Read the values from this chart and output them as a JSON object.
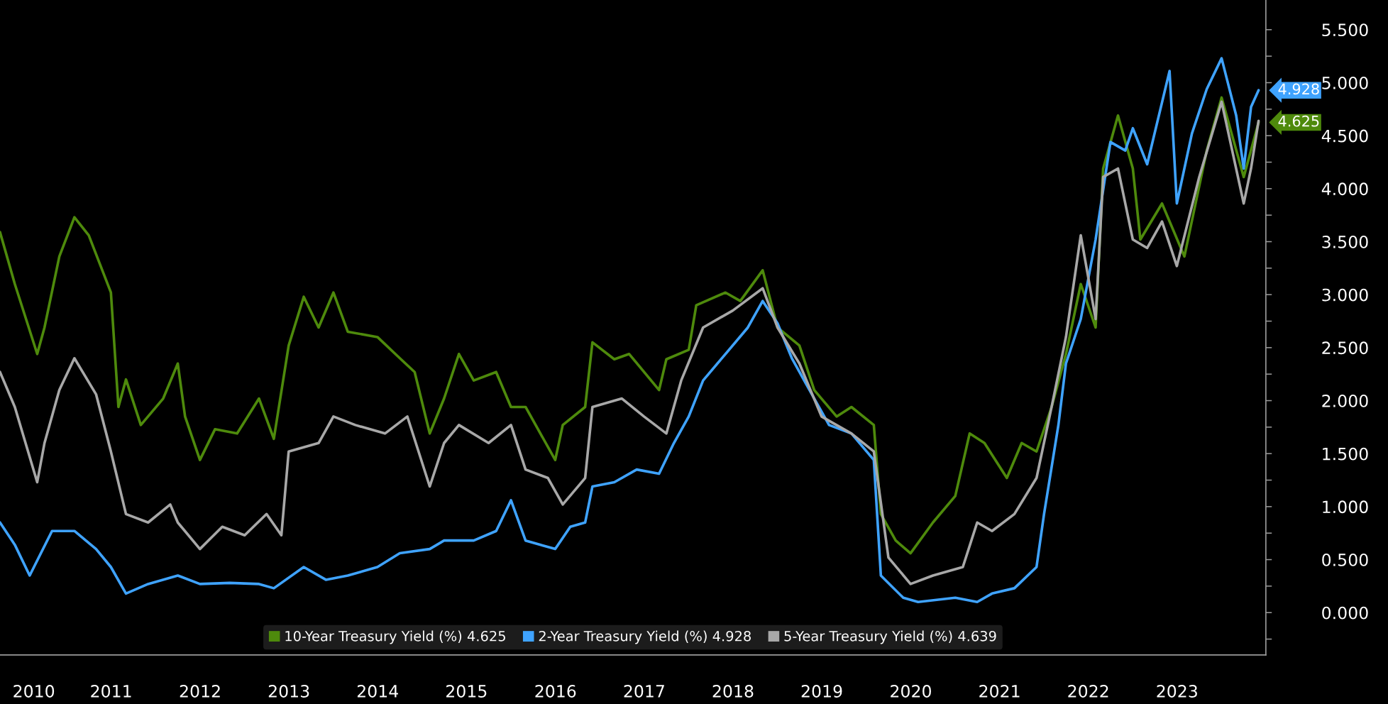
{
  "chart_data": {
    "type": "line",
    "xlim": [
      "2010-04-01",
      "2024-07-01"
    ],
    "xticks": [
      {
        "value": "2010-08-18",
        "label": "2010"
      },
      {
        "value": "2011-07-02",
        "label": "2011"
      },
      {
        "value": "2012-07-02",
        "label": "2012"
      },
      {
        "value": "2013-07-02",
        "label": "2013"
      },
      {
        "value": "2014-07-02",
        "label": "2014"
      },
      {
        "value": "2015-07-02",
        "label": "2015"
      },
      {
        "value": "2016-07-02",
        "label": "2016"
      },
      {
        "value": "2017-07-02",
        "label": "2017"
      },
      {
        "value": "2018-07-02",
        "label": "2018"
      },
      {
        "value": "2019-07-02",
        "label": "2019"
      },
      {
        "value": "2020-07-02",
        "label": "2020"
      },
      {
        "value": "2021-07-02",
        "label": "2021"
      },
      {
        "value": "2022-07-02",
        "label": "2022"
      },
      {
        "value": "2023-07-02",
        "label": "2023"
      }
    ],
    "ylim": [
      -0.4,
      5.78
    ],
    "yticks": [
      {
        "value": -0.25,
        "label": null
      },
      {
        "value": 0,
        "label": "0.000"
      },
      {
        "value": 0.25,
        "label": null
      },
      {
        "value": 0.5,
        "label": "0.500"
      },
      {
        "value": 0.75,
        "label": null
      },
      {
        "value": 1,
        "label": "1.000"
      },
      {
        "value": 1.25,
        "label": null
      },
      {
        "value": 1.5,
        "label": "1.500"
      },
      {
        "value": 1.75,
        "label": null
      },
      {
        "value": 2,
        "label": "2.000"
      },
      {
        "value": 2.25,
        "label": null
      },
      {
        "value": 2.5,
        "label": "2.500"
      },
      {
        "value": 2.75,
        "label": null
      },
      {
        "value": 3,
        "label": "3.000"
      },
      {
        "value": 3.25,
        "label": null
      },
      {
        "value": 3.5,
        "label": "3.500"
      },
      {
        "value": 3.75,
        "label": null
      },
      {
        "value": 4,
        "label": "4.000"
      },
      {
        "value": 4.25,
        "label": null
      },
      {
        "value": 4.5,
        "label": "4.500"
      },
      {
        "value": 4.75,
        "label": null
      },
      {
        "value": 5,
        "label": "5.000"
      },
      {
        "value": 5.25,
        "label": null
      },
      {
        "value": 5.5,
        "label": "5.500"
      }
    ],
    "grid": false,
    "legend": "bottom",
    "series": [
      {
        "name": "10-Year Treasury Yield (%) 4.625",
        "color": "#4e8a0c",
        "x": [
          "2010-04",
          "2010-06",
          "2010-09",
          "2010-10",
          "2010-12",
          "2011-02",
          "2011-04",
          "2011-07",
          "2011-08",
          "2011-09",
          "2011-11",
          "2012-02",
          "2012-04",
          "2012-05",
          "2012-07",
          "2012-09",
          "2012-12",
          "2013-03",
          "2013-05",
          "2013-07",
          "2013-09",
          "2013-11",
          "2014-01",
          "2014-03",
          "2014-07",
          "2014-10",
          "2014-12",
          "2015-02",
          "2015-04",
          "2015-06",
          "2015-08",
          "2015-11",
          "2016-01",
          "2016-03",
          "2016-07",
          "2016-08",
          "2016-11",
          "2016-12",
          "2017-03",
          "2017-05",
          "2017-09",
          "2017-10",
          "2018-01",
          "2018-02",
          "2018-06",
          "2018-08",
          "2018-11",
          "2019-01",
          "2019-04",
          "2019-06",
          "2019-09",
          "2019-11",
          "2020-02",
          "2020-03",
          "2020-05",
          "2020-07",
          "2020-10",
          "2021-01",
          "2021-03",
          "2021-05",
          "2021-08",
          "2021-10",
          "2021-12",
          "2022-02",
          "2022-04",
          "2022-06",
          "2022-08",
          "2022-09",
          "2022-11",
          "2023-01",
          "2023-02",
          "2023-05",
          "2023-08",
          "2023-11",
          "2024-01",
          "2024-04",
          "2024-06"
        ],
        "values": [
          3.59,
          3.1,
          2.44,
          2.69,
          3.36,
          3.73,
          3.56,
          3.02,
          1.94,
          2.2,
          1.77,
          2.02,
          2.35,
          1.85,
          1.44,
          1.73,
          1.69,
          2.02,
          1.64,
          2.52,
          2.98,
          2.69,
          3.02,
          2.65,
          2.6,
          2.4,
          2.27,
          1.69,
          2.02,
          2.44,
          2.19,
          2.27,
          1.94,
          1.94,
          1.44,
          1.77,
          1.94,
          2.55,
          2.39,
          2.44,
          2.1,
          2.39,
          2.48,
          2.9,
          3.02,
          2.94,
          3.23,
          2.69,
          2.52,
          2.1,
          1.85,
          1.94,
          1.77,
          0.93,
          0.68,
          0.56,
          0.85,
          1.1,
          1.69,
          1.6,
          1.27,
          1.6,
          1.52,
          1.94,
          2.44,
          3.1,
          2.69,
          4.19,
          4.69,
          4.19,
          3.52,
          3.86,
          3.36,
          4.36,
          4.86,
          4.11,
          4.625
        ],
        "value_labels": [
          null,
          null,
          null,
          null,
          null,
          null,
          null,
          null,
          null,
          null,
          null,
          null,
          null,
          null,
          null,
          null,
          null,
          null,
          null,
          null,
          null,
          null,
          null,
          null,
          null,
          null,
          null,
          null,
          null,
          null,
          null,
          null,
          null,
          null,
          null,
          null,
          null,
          null,
          null,
          null,
          null,
          null,
          null,
          null,
          null,
          null,
          null,
          null,
          null,
          null,
          null,
          null,
          null,
          null,
          null,
          null,
          null,
          null,
          null,
          null,
          null,
          null,
          null,
          null,
          null,
          null,
          null,
          null,
          null,
          null,
          null,
          null,
          null,
          null,
          null,
          null,
          "4.625"
        ]
      },
      {
        "name": "2-Year Treasury Yield (%) 4.928",
        "color": "#3fa3ff",
        "x": [
          "2010-04",
          "2010-06",
          "2010-08",
          "2010-11",
          "2011-02",
          "2011-05",
          "2011-07",
          "2011-09",
          "2011-12",
          "2012-04",
          "2012-07",
          "2012-11",
          "2013-03",
          "2013-05",
          "2013-09",
          "2013-12",
          "2014-03",
          "2014-07",
          "2014-10",
          "2015-02",
          "2015-04",
          "2015-08",
          "2015-11",
          "2016-01",
          "2016-03",
          "2016-07",
          "2016-09",
          "2016-11",
          "2016-12",
          "2017-03",
          "2017-06",
          "2017-09",
          "2017-11",
          "2018-01",
          "2018-03",
          "2018-06",
          "2018-09",
          "2018-11",
          "2019-01",
          "2019-03",
          "2019-06",
          "2019-08",
          "2019-11",
          "2020-02",
          "2020-03",
          "2020-06",
          "2020-08",
          "2021-01",
          "2021-04",
          "2021-06",
          "2021-09",
          "2021-12",
          "2022-01",
          "2022-03",
          "2022-04",
          "2022-06",
          "2022-08",
          "2022-10",
          "2022-12",
          "2023-01",
          "2023-03",
          "2023-06",
          "2023-07",
          "2023-09",
          "2023-11",
          "2024-01",
          "2024-03",
          "2024-04",
          "2024-05",
          "2024-06"
        ],
        "values": [
          0.85,
          0.64,
          0.35,
          0.77,
          0.77,
          0.6,
          0.43,
          0.18,
          0.27,
          0.35,
          0.27,
          0.28,
          0.27,
          0.23,
          0.43,
          0.31,
          0.35,
          0.43,
          0.56,
          0.6,
          0.68,
          0.68,
          0.77,
          1.06,
          0.68,
          0.6,
          0.81,
          0.85,
          1.19,
          1.23,
          1.35,
          1.31,
          1.6,
          1.85,
          2.19,
          2.44,
          2.69,
          2.94,
          2.73,
          2.4,
          2.02,
          1.77,
          1.69,
          1.44,
          0.35,
          0.14,
          0.1,
          0.14,
          0.1,
          0.18,
          0.23,
          0.43,
          0.93,
          1.77,
          2.35,
          2.77,
          3.52,
          4.44,
          4.36,
          4.57,
          4.23,
          5.11,
          3.86,
          4.52,
          4.94,
          5.23,
          4.69,
          4.19,
          4.77,
          4.928
        ],
        "value_labels": [
          null,
          null,
          null,
          null,
          null,
          null,
          null,
          null,
          null,
          null,
          null,
          null,
          null,
          null,
          null,
          null,
          null,
          null,
          null,
          null,
          null,
          null,
          null,
          null,
          null,
          null,
          null,
          null,
          null,
          null,
          null,
          null,
          null,
          null,
          null,
          null,
          null,
          null,
          null,
          null,
          null,
          null,
          null,
          null,
          null,
          null,
          null,
          null,
          null,
          null,
          null,
          null,
          null,
          null,
          null,
          null,
          null,
          null,
          null,
          null,
          null,
          null,
          null,
          null,
          null,
          null,
          null,
          null,
          null,
          "4.928"
        ]
      },
      {
        "name": "5-Year Treasury Yield (%) 4.639",
        "color": "#a8a8a8",
        "x": [
          "2010-04",
          "2010-06",
          "2010-09",
          "2010-10",
          "2010-12",
          "2011-02",
          "2011-05",
          "2011-07",
          "2011-09",
          "2011-12",
          "2012-03",
          "2012-04",
          "2012-07",
          "2012-10",
          "2013-01",
          "2013-04",
          "2013-06",
          "2013-07",
          "2013-11",
          "2014-01",
          "2014-04",
          "2014-08",
          "2014-11",
          "2015-02",
          "2015-04",
          "2015-06",
          "2015-10",
          "2016-01",
          "2016-03",
          "2016-06",
          "2016-08",
          "2016-11",
          "2016-12",
          "2017-04",
          "2017-07",
          "2017-10",
          "2017-12",
          "2018-03",
          "2018-07",
          "2018-11",
          "2019-01",
          "2019-04",
          "2019-07",
          "2019-11",
          "2020-02",
          "2020-04",
          "2020-07",
          "2020-10",
          "2021-02",
          "2021-04",
          "2021-06",
          "2021-09",
          "2021-12",
          "2022-02",
          "2022-04",
          "2022-06",
          "2022-08",
          "2022-09",
          "2022-11",
          "2023-01",
          "2023-03",
          "2023-05",
          "2023-07",
          "2023-10",
          "2024-01",
          "2024-04",
          "2024-05",
          "2024-06"
        ],
        "values": [
          2.27,
          1.94,
          1.23,
          1.6,
          2.1,
          2.4,
          2.06,
          1.52,
          0.93,
          0.85,
          1.02,
          0.85,
          0.6,
          0.81,
          0.73,
          0.93,
          0.73,
          1.52,
          1.6,
          1.85,
          1.77,
          1.69,
          1.85,
          1.19,
          1.6,
          1.77,
          1.6,
          1.77,
          1.35,
          1.27,
          1.02,
          1.27,
          1.94,
          2.02,
          1.85,
          1.69,
          2.19,
          2.69,
          2.85,
          3.06,
          2.69,
          2.35,
          1.85,
          1.69,
          1.52,
          0.52,
          0.27,
          0.35,
          0.43,
          0.85,
          0.77,
          0.93,
          1.27,
          1.94,
          2.6,
          3.56,
          2.77,
          4.11,
          4.19,
          3.52,
          3.44,
          3.69,
          3.27,
          4.11,
          4.82,
          3.86,
          4.19,
          4.639
        ]
      }
    ]
  }
}
